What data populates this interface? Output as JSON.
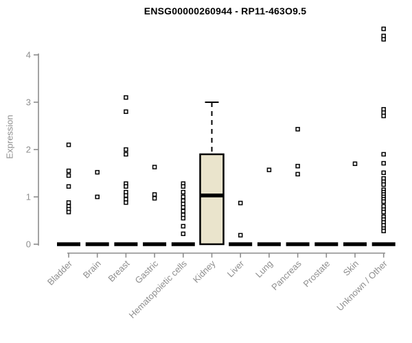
{
  "title": "ENSG00000260944 - RP11-463O9.5",
  "colors": {
    "axis": "#8c8c8c",
    "tick_text": "#8e8e8e",
    "box_fill": "#EAE4CC",
    "box_border": "#000000",
    "data_black": "#000000",
    "background": "#ffffff"
  },
  "chart_data": {
    "type": "boxplot",
    "title": "ENSG00000260944 - RP11-463O9.5",
    "xlabel": "",
    "ylabel": "Expression",
    "ylim": [
      0,
      4.6
    ],
    "yticks": [
      0,
      1,
      2,
      3,
      4
    ],
    "grid": false,
    "legend": "none",
    "categories": [
      "Bladder",
      "Brain",
      "Breast",
      "Gastric",
      "Hematopoietic cells",
      "Kidney",
      "Liver",
      "Lung",
      "Pancreas",
      "Prostate",
      "Skin",
      "Unknown / Other"
    ],
    "series": [
      {
        "label": "Bladder",
        "q1": 0,
        "median": 0,
        "q3": 0,
        "whisker_high": 0,
        "outliers": [
          2.1,
          1.55,
          1.45,
          1.22,
          0.88,
          0.8,
          0.74,
          0.68
        ]
      },
      {
        "label": "Brain",
        "q1": 0,
        "median": 0,
        "q3": 0,
        "whisker_high": 0,
        "outliers": [
          1.52,
          1.0
        ]
      },
      {
        "label": "Breast",
        "q1": 0,
        "median": 0,
        "q3": 0,
        "whisker_high": 0,
        "outliers": [
          3.1,
          2.8,
          2.0,
          1.9,
          1.28,
          1.22,
          1.1,
          1.03,
          0.95,
          0.88
        ]
      },
      {
        "label": "Gastric",
        "q1": 0,
        "median": 0,
        "q3": 0,
        "whisker_high": 0,
        "outliers": [
          1.63,
          1.05,
          0.97
        ]
      },
      {
        "label": "Hematopoietic cells",
        "q1": 0,
        "median": 0,
        "q3": 0,
        "whisker_high": 0,
        "outliers": [
          1.28,
          1.22,
          1.1,
          1.0,
          0.92,
          0.85,
          0.78,
          0.7,
          0.62,
          0.55,
          0.38,
          0.22
        ]
      },
      {
        "label": "Kidney",
        "q1": 0,
        "median": 1.03,
        "q3": 1.9,
        "whisker_high": 3.0,
        "outliers": []
      },
      {
        "label": "Liver",
        "q1": 0,
        "median": 0,
        "q3": 0,
        "whisker_high": 0,
        "outliers": [
          0.87,
          0.19
        ]
      },
      {
        "label": "Lung",
        "q1": 0,
        "median": 0,
        "q3": 0,
        "whisker_high": 0,
        "outliers": [
          1.57
        ]
      },
      {
        "label": "Pancreas",
        "q1": 0,
        "median": 0,
        "q3": 0,
        "whisker_high": 0,
        "outliers": [
          2.43,
          1.65,
          1.48
        ]
      },
      {
        "label": "Prostate",
        "q1": 0,
        "median": 0,
        "q3": 0,
        "whisker_high": 0,
        "outliers": []
      },
      {
        "label": "Skin",
        "q1": 0,
        "median": 0,
        "q3": 0,
        "whisker_high": 0,
        "outliers": [
          1.7
        ]
      },
      {
        "label": "Unknown / Other",
        "q1": 0,
        "median": 0,
        "q3": 0,
        "whisker_high": 0,
        "outliers": [
          4.55,
          4.4,
          4.33,
          2.85,
          2.78,
          2.71,
          1.9,
          1.71,
          1.51,
          1.39,
          1.32,
          1.26,
          1.15,
          1.1,
          1.05,
          1.0,
          0.95,
          0.9,
          0.8,
          0.73,
          0.68,
          0.58,
          0.52,
          0.46,
          0.4,
          0.33,
          0.28
        ]
      }
    ]
  }
}
